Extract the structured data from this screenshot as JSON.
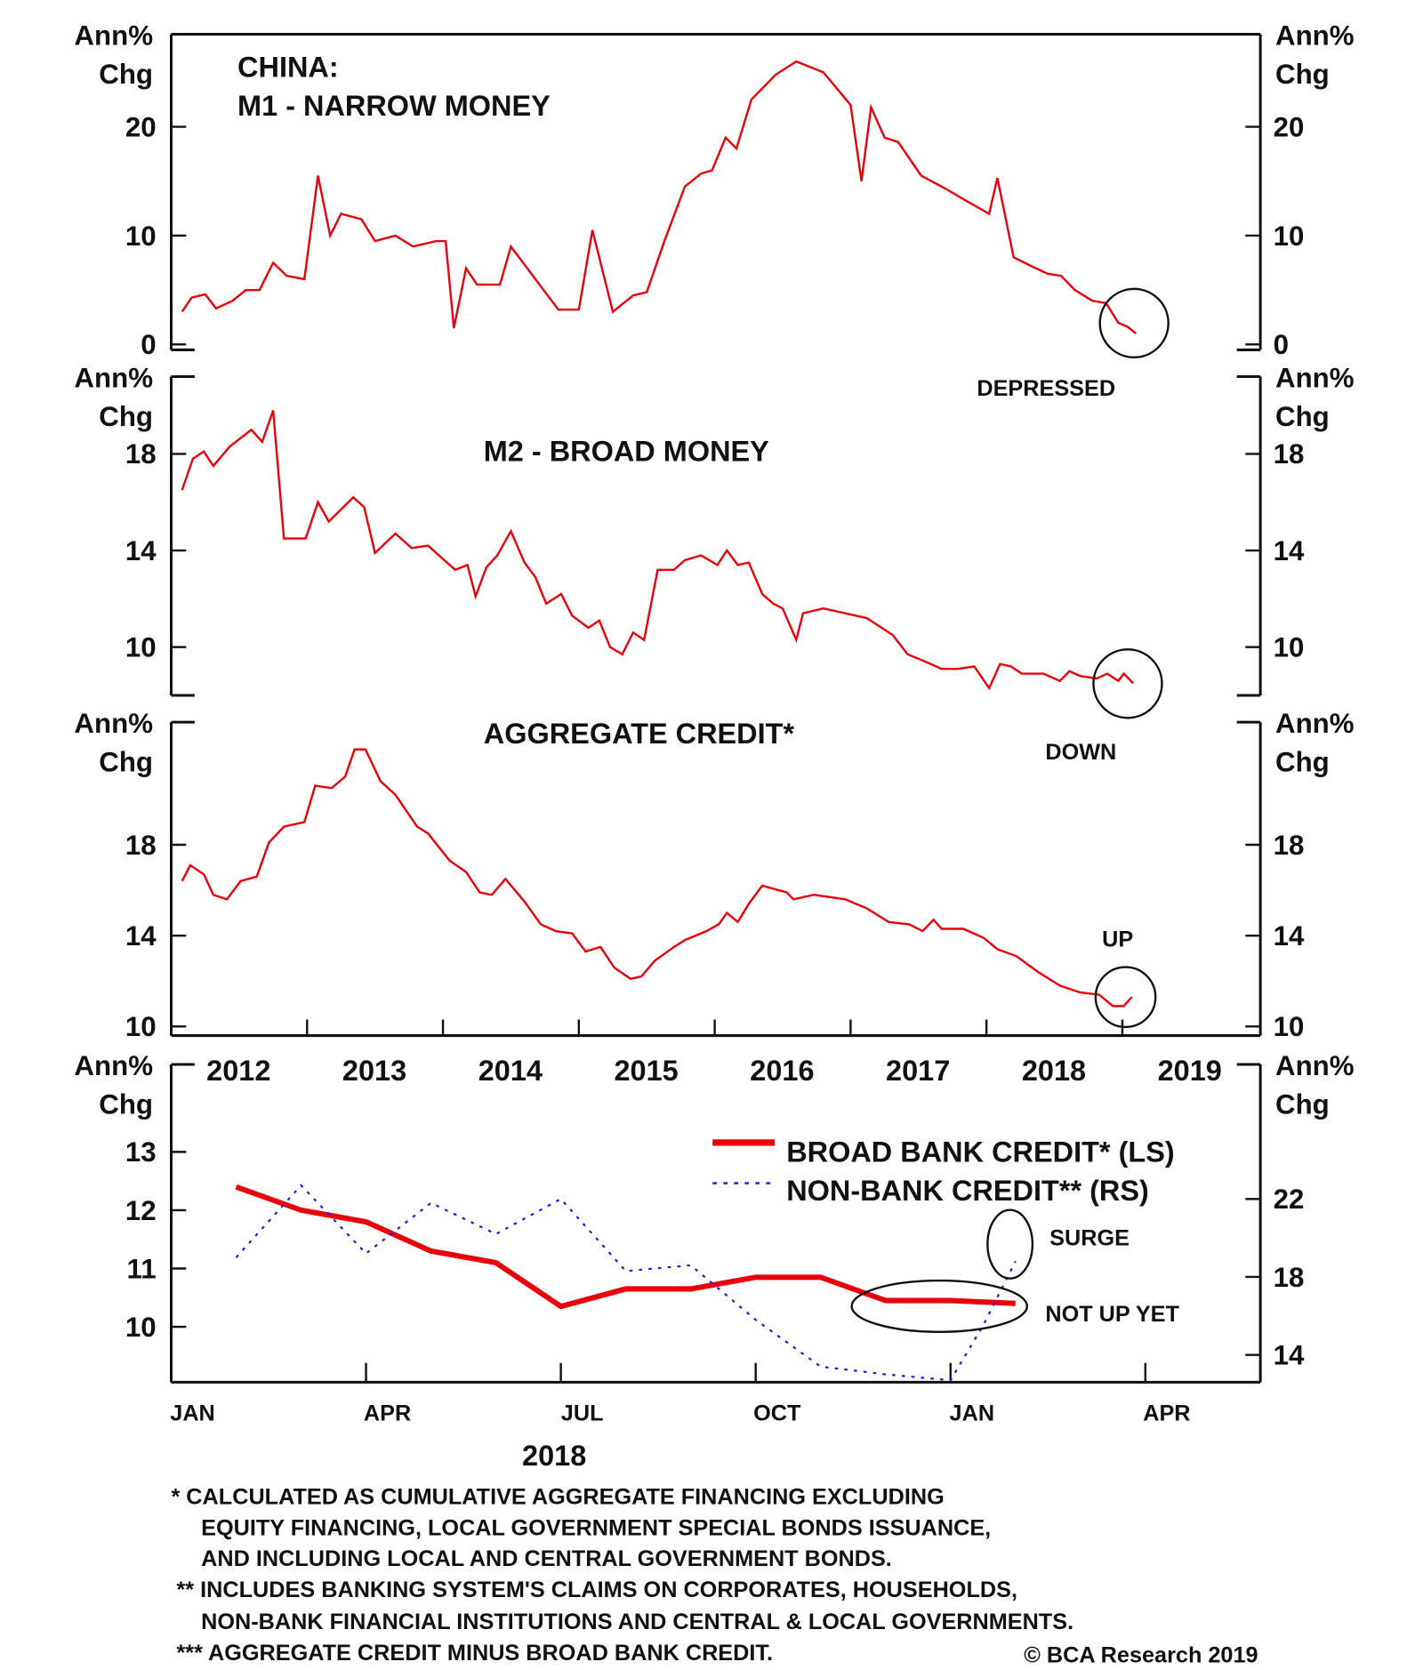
{
  "chart_data": [
    {
      "type": "line",
      "title": [
        "CHINA:",
        "M1 - NARROW MONEY"
      ],
      "ylabel": [
        "Ann%",
        "Chg"
      ],
      "ylim": [
        -0.5,
        28.5
      ],
      "yticks": [
        0,
        10,
        20
      ],
      "xlim": [
        2012,
        2020
      ],
      "annotation": "DEPRESSED",
      "series": [
        {
          "name": "M1",
          "color": "#e8000b",
          "points": [
            [
              2012.08,
              3
            ],
            [
              2012.15,
              4.3
            ],
            [
              2012.25,
              4.6
            ],
            [
              2012.33,
              3.3
            ],
            [
              2012.45,
              4
            ],
            [
              2012.55,
              5
            ],
            [
              2012.65,
              5
            ],
            [
              2012.75,
              7.5
            ],
            [
              2012.85,
              6.3
            ],
            [
              2012.98,
              6
            ],
            [
              2013.08,
              15.5
            ],
            [
              2013.17,
              10
            ],
            [
              2013.25,
              12
            ],
            [
              2013.4,
              11.5
            ],
            [
              2013.5,
              9.5
            ],
            [
              2013.65,
              10
            ],
            [
              2013.78,
              9
            ],
            [
              2013.95,
              9.5
            ],
            [
              2014.02,
              9.5
            ],
            [
              2014.08,
              1.5
            ],
            [
              2014.17,
              7
            ],
            [
              2014.25,
              5.5
            ],
            [
              2014.42,
              5.5
            ],
            [
              2014.5,
              9
            ],
            [
              2014.68,
              6
            ],
            [
              2014.85,
              3.2
            ],
            [
              2015.0,
              3.2
            ],
            [
              2015.1,
              10.5
            ],
            [
              2015.25,
              3
            ],
            [
              2015.4,
              4.5
            ],
            [
              2015.5,
              4.8
            ],
            [
              2015.63,
              9.5
            ],
            [
              2015.78,
              14.5
            ],
            [
              2015.9,
              15.7
            ],
            [
              2015.98,
              16
            ],
            [
              2016.08,
              19
            ],
            [
              2016.16,
              18
            ],
            [
              2016.27,
              22.5
            ],
            [
              2016.45,
              24.8
            ],
            [
              2016.6,
              26
            ],
            [
              2016.8,
              25
            ],
            [
              2017.0,
              22
            ],
            [
              2017.08,
              15
            ],
            [
              2017.15,
              21.8
            ],
            [
              2017.25,
              19
            ],
            [
              2017.35,
              18.6
            ],
            [
              2017.52,
              15.5
            ],
            [
              2017.7,
              14.3
            ],
            [
              2017.85,
              13.2
            ],
            [
              2018.02,
              12
            ],
            [
              2018.08,
              15.3
            ],
            [
              2018.2,
              8
            ],
            [
              2018.33,
              7.2
            ],
            [
              2018.45,
              6.5
            ],
            [
              2018.55,
              6.3
            ],
            [
              2018.65,
              5
            ],
            [
              2018.78,
              4
            ],
            [
              2018.88,
              3.8
            ],
            [
              2018.97,
              2
            ],
            [
              2019.04,
              1.6
            ],
            [
              2019.1,
              1
            ]
          ]
        }
      ]
    },
    {
      "type": "line",
      "title": "M2 - BROAD MONEY",
      "ylabel": [
        "Ann%",
        "Chg"
      ],
      "ylim": [
        8,
        21.2
      ],
      "yticks": [
        10,
        14,
        18
      ],
      "xlim": [
        2012,
        2020
      ],
      "annotation": "DOWN",
      "series": [
        {
          "name": "M2",
          "color": "#e8000b",
          "points": [
            [
              2012.08,
              16.5
            ],
            [
              2012.16,
              17.8
            ],
            [
              2012.24,
              18.1
            ],
            [
              2012.31,
              17.5
            ],
            [
              2012.43,
              18.3
            ],
            [
              2012.59,
              19
            ],
            [
              2012.67,
              18.5
            ],
            [
              2012.75,
              19.8
            ],
            [
              2012.83,
              14.5
            ],
            [
              2012.99,
              14.5
            ],
            [
              2013.08,
              16
            ],
            [
              2013.16,
              15.2
            ],
            [
              2013.34,
              16.2
            ],
            [
              2013.42,
              15.8
            ],
            [
              2013.5,
              13.9
            ],
            [
              2013.65,
              14.7
            ],
            [
              2013.77,
              14.1
            ],
            [
              2013.89,
              14.2
            ],
            [
              2013.97,
              13.8
            ],
            [
              2014.09,
              13.2
            ],
            [
              2014.18,
              13.4
            ],
            [
              2014.24,
              12.1
            ],
            [
              2014.32,
              13.3
            ],
            [
              2014.4,
              13.8
            ],
            [
              2014.5,
              14.8
            ],
            [
              2014.6,
              13.5
            ],
            [
              2014.68,
              12.9
            ],
            [
              2014.76,
              11.8
            ],
            [
              2014.87,
              12.2
            ],
            [
              2014.95,
              11.3
            ],
            [
              2015.07,
              10.8
            ],
            [
              2015.15,
              11.1
            ],
            [
              2015.23,
              10
            ],
            [
              2015.32,
              9.7
            ],
            [
              2015.4,
              10.6
            ],
            [
              2015.48,
              10.3
            ],
            [
              2015.58,
              13.2
            ],
            [
              2015.7,
              13.2
            ],
            [
              2015.78,
              13.6
            ],
            [
              2015.9,
              13.8
            ],
            [
              2016.02,
              13.4
            ],
            [
              2016.09,
              14
            ],
            [
              2016.17,
              13.4
            ],
            [
              2016.25,
              13.5
            ],
            [
              2016.35,
              12.2
            ],
            [
              2016.43,
              11.8
            ],
            [
              2016.5,
              11.6
            ],
            [
              2016.6,
              10.3
            ],
            [
              2016.65,
              11.4
            ],
            [
              2016.8,
              11.6
            ],
            [
              2016.96,
              11.4
            ],
            [
              2017.12,
              11.2
            ],
            [
              2017.31,
              10.5
            ],
            [
              2017.42,
              9.7
            ],
            [
              2017.55,
              9.4
            ],
            [
              2017.67,
              9.1
            ],
            [
              2017.79,
              9.1
            ],
            [
              2017.91,
              9.2
            ],
            [
              2018.02,
              8.3
            ],
            [
              2018.1,
              9.3
            ],
            [
              2018.18,
              9.2
            ],
            [
              2018.26,
              8.9
            ],
            [
              2018.42,
              8.9
            ],
            [
              2018.54,
              8.6
            ],
            [
              2018.61,
              9
            ],
            [
              2018.69,
              8.8
            ],
            [
              2018.81,
              8.7
            ],
            [
              2018.89,
              8.9
            ],
            [
              2018.97,
              8.6
            ],
            [
              2019.01,
              8.9
            ],
            [
              2019.08,
              8.5
            ]
          ]
        }
      ]
    },
    {
      "type": "line",
      "title": "AGGREGATE CREDIT*",
      "ylabel": [
        "Ann%",
        "Chg"
      ],
      "ylim": [
        9.6,
        23.4
      ],
      "yticks": [
        10,
        14,
        18
      ],
      "xlim": [
        2012,
        2020
      ],
      "xticks": [
        "2012",
        "2013",
        "2014",
        "2015",
        "2016",
        "2017",
        "2018",
        "2019"
      ],
      "annotation": "UP",
      "series": [
        {
          "name": "Aggregate credit",
          "color": "#e8000b",
          "points": [
            [
              2012.08,
              16.4
            ],
            [
              2012.14,
              17.1
            ],
            [
              2012.24,
              16.7
            ],
            [
              2012.31,
              15.8
            ],
            [
              2012.41,
              15.6
            ],
            [
              2012.51,
              16.4
            ],
            [
              2012.63,
              16.6
            ],
            [
              2012.72,
              18.1
            ],
            [
              2012.83,
              18.8
            ],
            [
              2012.98,
              19
            ],
            [
              2013.06,
              20.6
            ],
            [
              2013.18,
              20.5
            ],
            [
              2013.28,
              21
            ],
            [
              2013.35,
              22.2
            ],
            [
              2013.43,
              22.2
            ],
            [
              2013.54,
              20.8
            ],
            [
              2013.65,
              20.2
            ],
            [
              2013.81,
              18.8
            ],
            [
              2013.89,
              18.5
            ],
            [
              2014.05,
              17.3
            ],
            [
              2014.17,
              16.8
            ],
            [
              2014.27,
              15.9
            ],
            [
              2014.36,
              15.8
            ],
            [
              2014.46,
              16.5
            ],
            [
              2014.6,
              15.5
            ],
            [
              2014.72,
              14.5
            ],
            [
              2014.83,
              14.2
            ],
            [
              2014.95,
              14.1
            ],
            [
              2015.05,
              13.3
            ],
            [
              2015.16,
              13.5
            ],
            [
              2015.26,
              12.6
            ],
            [
              2015.38,
              12.1
            ],
            [
              2015.46,
              12.2
            ],
            [
              2015.56,
              12.9
            ],
            [
              2015.7,
              13.5
            ],
            [
              2015.78,
              13.8
            ],
            [
              2015.94,
              14.2
            ],
            [
              2016.03,
              14.5
            ],
            [
              2016.09,
              15
            ],
            [
              2016.17,
              14.6
            ],
            [
              2016.25,
              15.4
            ],
            [
              2016.35,
              16.2
            ],
            [
              2016.53,
              15.9
            ],
            [
              2016.58,
              15.6
            ],
            [
              2016.73,
              15.8
            ],
            [
              2016.96,
              15.6
            ],
            [
              2017.12,
              15.2
            ],
            [
              2017.28,
              14.6
            ],
            [
              2017.43,
              14.5
            ],
            [
              2017.53,
              14.2
            ],
            [
              2017.61,
              14.7
            ],
            [
              2017.67,
              14.3
            ],
            [
              2017.83,
              14.3
            ],
            [
              2017.98,
              13.9
            ],
            [
              2018.08,
              13.4
            ],
            [
              2018.22,
              13.1
            ],
            [
              2018.38,
              12.4
            ],
            [
              2018.54,
              11.8
            ],
            [
              2018.69,
              11.5
            ],
            [
              2018.83,
              11.4
            ],
            [
              2018.93,
              10.9
            ],
            [
              2019.01,
              10.9
            ],
            [
              2019.07,
              11.3
            ]
          ]
        }
      ]
    },
    {
      "type": "line",
      "ylabel_left": [
        "Ann%",
        "Chg"
      ],
      "ylabel_right": [
        "Ann%",
        "Chg"
      ],
      "ylim_left": [
        9.05,
        14.5
      ],
      "ylim_right": [
        12.6,
        28.9
      ],
      "yticks_left": [
        10,
        11,
        12,
        13
      ],
      "yticks_right": [
        14,
        18,
        22
      ],
      "xlim_months": [
        0,
        15
      ],
      "xticks": [
        "JAN",
        "APR",
        "JUL",
        "OCT",
        "JAN",
        "APR"
      ],
      "xlabel": "2018",
      "legend_position": "top-right",
      "annotations": [
        "SURGE",
        "NOT UP YET"
      ],
      "series": [
        {
          "name": "BROAD BANK CREDIT* (LS)",
          "axis": "left",
          "color": "#e8000b",
          "style": "solid",
          "months": [
            1,
            2,
            3,
            4,
            5,
            6,
            7,
            8,
            9,
            10,
            11,
            12,
            13
          ],
          "values": [
            12.4,
            12.0,
            11.8,
            11.3,
            11.1,
            10.35,
            10.65,
            10.65,
            10.85,
            10.85,
            10.45,
            10.45,
            10.4
          ]
        },
        {
          "name": "NON-BANK CREDIT** (RS)",
          "axis": "right",
          "color": "#1a1adb",
          "style": "dotted",
          "months": [
            1,
            2,
            3,
            4,
            5,
            6,
            7,
            8,
            9,
            10,
            11,
            12,
            12.5,
            13
          ],
          "values": [
            19.0,
            22.7,
            19.2,
            21.8,
            20.2,
            22.0,
            18.3,
            18.6,
            15.8,
            13.4,
            13.0,
            12.7,
            15.5,
            18.8
          ]
        }
      ]
    }
  ],
  "footnotes": [
    "*   CALCULATED AS CUMULATIVE AGGREGATE FINANCING EXCLUDING",
    "EQUITY FINANCING, LOCAL GOVERNMENT SPECIAL BONDS ISSUANCE,",
    "AND INCLUDING LOCAL AND CENTRAL GOVERNMENT BONDS.",
    "** INCLUDES BANKING SYSTEM'S CLAIMS ON CORPORATES, HOUSEHOLDS,",
    "NON-BANK FINANCIAL INSTITUTIONS AND CENTRAL & LOCAL GOVERNMENTS.",
    "*** AGGREGATE CREDIT MINUS BROAD BANK CREDIT."
  ],
  "copyright": "© BCA Research 2019"
}
